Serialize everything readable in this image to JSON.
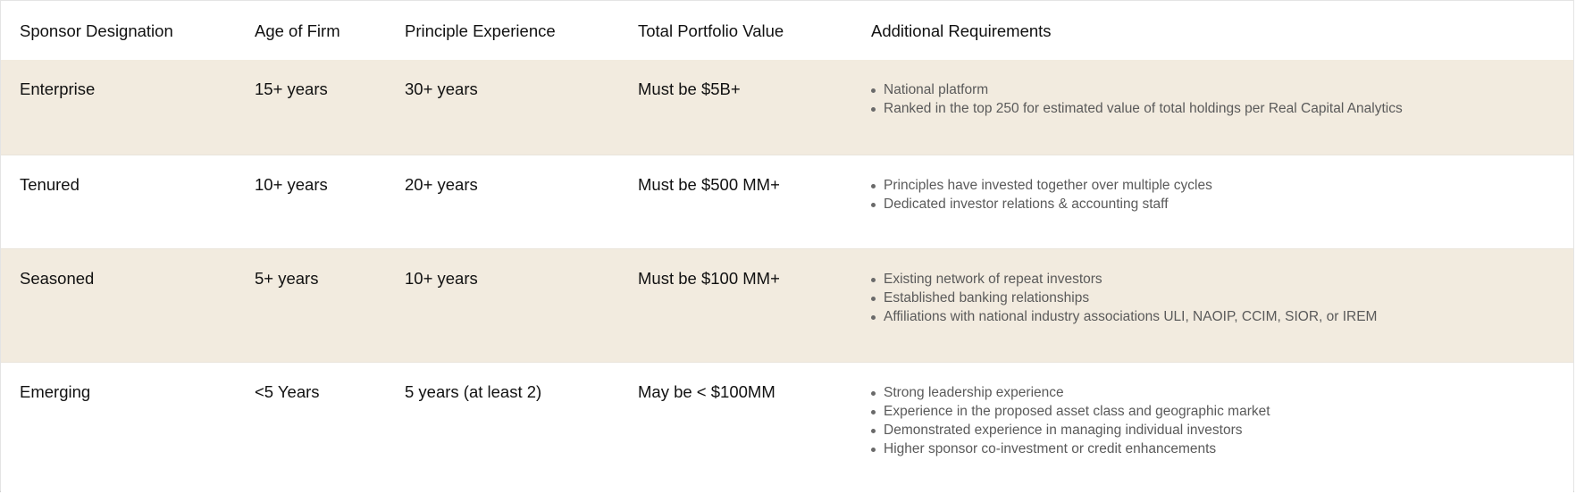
{
  "table": {
    "headers": [
      "Sponsor Designation",
      "Age of Firm",
      "Principle Experience",
      "Total Portfolio Value",
      "Additional Requirements"
    ],
    "rows": [
      {
        "designation": "Enterprise",
        "age": "15+ years",
        "experience": "30+ years",
        "portfolio": "Must be $5B+",
        "requirements": [
          "National platform",
          "Ranked in the top 250 for estimated value of total holdings per Real Capital Analytics"
        ]
      },
      {
        "designation": "Tenured",
        "age": "10+ years",
        "experience": "20+ years",
        "portfolio": "Must be $500 MM+",
        "requirements": [
          "Principles have invested together over multiple cycles",
          "Dedicated investor relations & accounting staff"
        ]
      },
      {
        "designation": "Seasoned",
        "age": "5+ years",
        "experience": "10+ years",
        "portfolio": "Must be $100 MM+",
        "requirements": [
          "Existing network of repeat investors",
          "Established banking relationships",
          "Affiliations with national industry associations ULI, NAOIP, CCIM, SIOR, or IREM"
        ]
      },
      {
        "designation": "Emerging",
        "age": "<5 Years",
        "experience": "5 years (at least 2)",
        "portfolio": "May be < $100MM",
        "requirements": [
          "Strong leadership experience",
          "Experience in the proposed asset class and geographic market",
          "Demonstrated experience in managing individual investors",
          "Higher sponsor co-investment or credit enhancements"
        ]
      }
    ]
  },
  "colors": {
    "shaded_row": "#f2ebdf",
    "text": "#111111",
    "list_text": "#5a5a5a"
  }
}
